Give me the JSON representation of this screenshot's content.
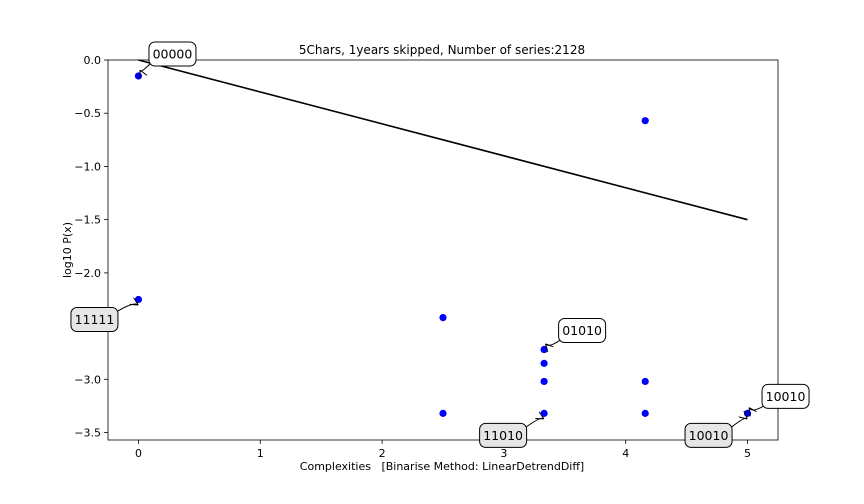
{
  "chart_data": {
    "type": "scatter",
    "title": "5Chars, 1years skipped, Number of series:2128",
    "xlabel": "Complexities   [Binarise Method: LinearDetrendDiff]",
    "ylabel": "log10 P(x)",
    "xlim": [
      -0.25,
      5.25
    ],
    "ylim": [
      -3.57,
      0.0
    ],
    "xticks": [
      0,
      1,
      2,
      3,
      4,
      5
    ],
    "yticks": [
      0.0,
      -0.5,
      -1.0,
      -1.5,
      -2.0,
      -2.5,
      -3.0,
      -3.5
    ],
    "ytick_labels": [
      "0.0",
      "−0.5",
      "−1.0",
      "−1.5",
      "−2.0",
      "−2.5",
      "−3.0",
      "−3.5"
    ],
    "grid": false,
    "marker_color": "#0000ff",
    "line_color": "#000000",
    "points": [
      {
        "x": 0.0,
        "y": -0.15
      },
      {
        "x": 0.0,
        "y": -2.25
      },
      {
        "x": 2.5,
        "y": -2.42
      },
      {
        "x": 2.5,
        "y": -3.32
      },
      {
        "x": 3.33,
        "y": -2.72
      },
      {
        "x": 3.33,
        "y": -2.85
      },
      {
        "x": 3.33,
        "y": -3.02
      },
      {
        "x": 3.33,
        "y": -3.32
      },
      {
        "x": 4.16,
        "y": -0.57
      },
      {
        "x": 4.16,
        "y": -3.02
      },
      {
        "x": 4.16,
        "y": -3.32
      },
      {
        "x": 5.0,
        "y": -3.32
      }
    ],
    "fit_line": {
      "x": [
        0.0,
        5.0
      ],
      "y": [
        0.0,
        -1.5
      ]
    },
    "annotations": [
      {
        "text": "00000",
        "x": 0.0,
        "y": -0.15,
        "style": "white"
      },
      {
        "text": "11111",
        "x": 0.0,
        "y": -2.25,
        "style": "gray"
      },
      {
        "text": "01010",
        "x": 3.33,
        "y": -2.72,
        "style": "white"
      },
      {
        "text": "11010",
        "x": 3.33,
        "y": -3.32,
        "style": "gray"
      },
      {
        "text": "10010",
        "x": 5.0,
        "y": -3.32,
        "style": "gray"
      },
      {
        "text": "10010",
        "x": 5.0,
        "y": -3.32,
        "style": "white"
      }
    ]
  }
}
